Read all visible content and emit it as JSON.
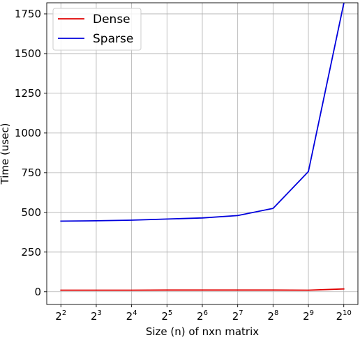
{
  "chart_data": {
    "type": "line",
    "title": "",
    "xlabel": "Size (n) of nxn matrix",
    "ylabel": "Time (usec)",
    "x_scale": "log2",
    "x": [
      4,
      8,
      16,
      32,
      64,
      128,
      256,
      512,
      1024
    ],
    "x_tick_base": "2",
    "x_tick_exponents": [
      "2",
      "3",
      "4",
      "5",
      "6",
      "7",
      "8",
      "9",
      "10"
    ],
    "y_ticks": [
      0,
      250,
      500,
      750,
      1000,
      1250,
      1500,
      1750
    ],
    "ylim": [
      -80,
      1820
    ],
    "grid": true,
    "legend_position": "top-left",
    "series": [
      {
        "name": "Dense",
        "color": "#e00000",
        "values": [
          10,
          10,
          10,
          11,
          11,
          11,
          11,
          10,
          18
        ]
      },
      {
        "name": "Sparse",
        "color": "#0000dd",
        "values": [
          445,
          447,
          451,
          458,
          465,
          480,
          525,
          757,
          1815
        ]
      }
    ]
  }
}
